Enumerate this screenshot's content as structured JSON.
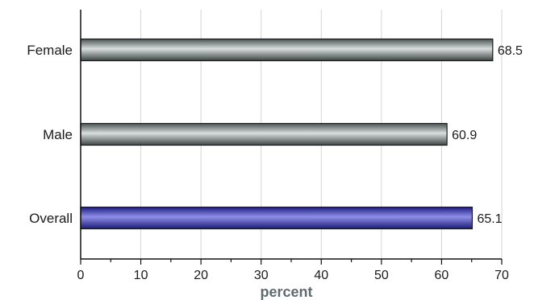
{
  "chart_data": {
    "type": "bar",
    "orientation": "horizontal",
    "categories": [
      "Female",
      "Male",
      "Overall"
    ],
    "values": [
      68.5,
      60.9,
      65.1
    ],
    "value_labels": [
      "68.5",
      "60.9",
      "65.1"
    ],
    "xlabel": "percent",
    "xlim": [
      0,
      70
    ],
    "xticks": [
      0,
      10,
      20,
      30,
      40,
      50,
      60,
      70
    ],
    "xtick_labels": [
      "0",
      "10",
      "20",
      "30",
      "40",
      "50",
      "60",
      "70"
    ],
    "grid": "vertical",
    "bar_colors": [
      "#7f8a8a",
      "#7f8a8a",
      "#3a3ab0"
    ],
    "xlabel_color": "#5f6b70"
  }
}
